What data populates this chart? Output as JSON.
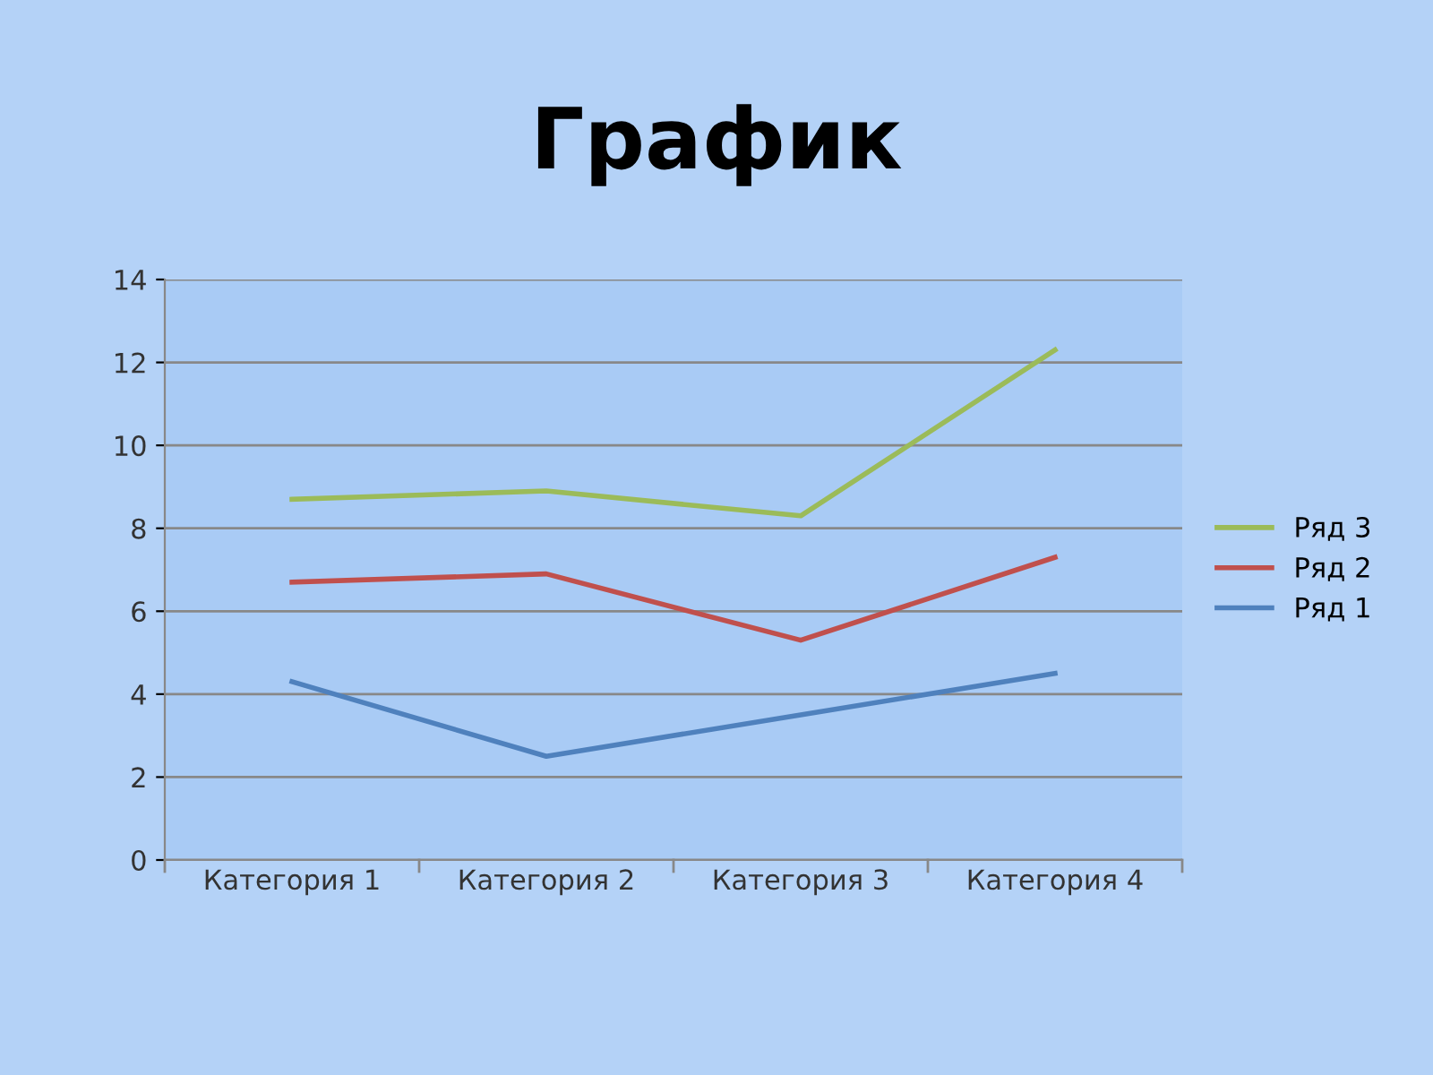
{
  "chart_data": {
    "type": "line",
    "title": "График",
    "categories": [
      "Категория 1",
      "Категория 2",
      "Категория 3",
      "Категория 4"
    ],
    "series": [
      {
        "name": "Ряд 1",
        "color": "#4f81bd",
        "values": [
          4.3,
          2.5,
          3.5,
          4.5
        ]
      },
      {
        "name": "Ряд 2",
        "color": "#c0504d",
        "values": [
          6.7,
          6.9,
          5.3,
          7.3
        ]
      },
      {
        "name": "Ряд 3",
        "color": "#9bbb59",
        "values": [
          8.7,
          8.9,
          8.3,
          12.3
        ]
      }
    ],
    "ylim": [
      0,
      14
    ],
    "yticks": [
      0,
      2,
      4,
      6,
      8,
      10,
      12,
      14
    ],
    "grid": "y",
    "legend": "right",
    "marker": "none",
    "line_style": "solid"
  }
}
